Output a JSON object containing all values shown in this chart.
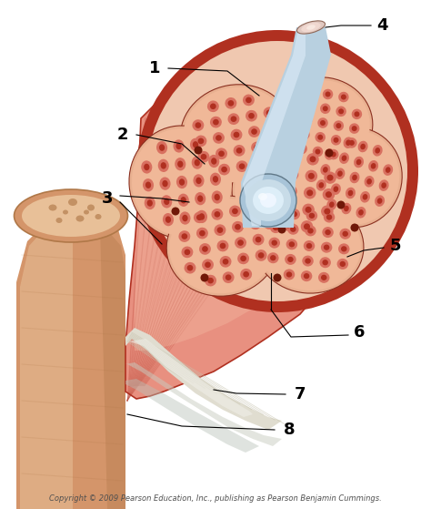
{
  "background_color": "#ffffff",
  "copyright_text": "Copyright © 2009 Pearson Education, Inc., publishing as Pearson Benjamin Cummings.",
  "label_fontsize": 13,
  "label_color": "#000000",
  "copyright_fontsize": 6.0,
  "fig_width": 4.74,
  "fig_height": 5.59,
  "muscle_body_color": "#d9705a",
  "muscle_light_color": "#e89080",
  "muscle_pale_color": "#f5c0a8",
  "muscle_stripe_color": "#c05040",
  "epimysium_color": "#b03020",
  "fascicle_outer": "#d87060",
  "fascicle_bg": "#f0b898",
  "fascicle_inner": "#b03020",
  "perimysium_color": "#e8b090",
  "nerve_outer": "#a8c8e0",
  "nerve_inner": "#d8eef8",
  "nerve_core": "#f0d8c8",
  "bone_color": "#d4956a",
  "bone_light": "#e8c098",
  "bone_dark": "#b07848",
  "tendon_color": "#e0ddd0",
  "tendon_line": "#c8c4b0"
}
